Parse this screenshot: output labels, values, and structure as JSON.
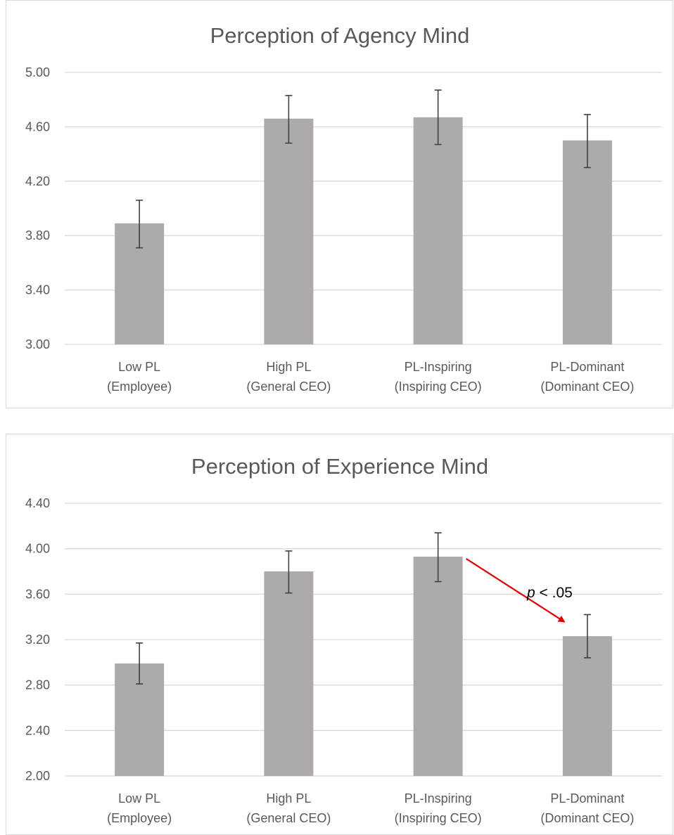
{
  "chart_data": [
    {
      "type": "bar",
      "title": "Perception of Agency Mind",
      "xlabel": "",
      "ylabel": "",
      "categories": [
        [
          "Low PL",
          "(Employee)"
        ],
        [
          "High PL",
          "(General CEO)"
        ],
        [
          "PL-Inspiring",
          "(Inspiring CEO)"
        ],
        [
          "PL-Dominant",
          "(Dominant CEO)"
        ]
      ],
      "values": [
        3.89,
        4.66,
        4.67,
        4.5
      ],
      "error_low": [
        3.71,
        4.48,
        4.47,
        4.3
      ],
      "error_high": [
        4.06,
        4.83,
        4.87,
        4.69
      ],
      "ylim": [
        3.0,
        5.0
      ],
      "yticks": [
        "3.00",
        "3.40",
        "3.80",
        "4.20",
        "4.60",
        "5.00"
      ],
      "grid": true,
      "legend": "none",
      "bar_color": "#aeaaaa"
    },
    {
      "type": "bar",
      "title": "Perception of Experience Mind",
      "xlabel": "",
      "ylabel": "",
      "categories": [
        [
          "Low PL",
          "(Employee)"
        ],
        [
          "High PL",
          "(General CEO)"
        ],
        [
          "PL-Inspiring",
          "(Inspiring CEO)"
        ],
        [
          "PL-Dominant",
          "(Dominant CEO)"
        ]
      ],
      "values": [
        2.99,
        3.8,
        3.93,
        3.23
      ],
      "error_low": [
        2.81,
        3.61,
        3.71,
        3.04
      ],
      "error_high": [
        3.17,
        3.98,
        4.14,
        3.42
      ],
      "ylim": [
        2.0,
        4.4
      ],
      "yticks": [
        "2.00",
        "2.40",
        "2.80",
        "3.20",
        "3.60",
        "4.00",
        "4.40"
      ],
      "grid": true,
      "legend": "none",
      "bar_color": "#aeaaaa",
      "annotation": {
        "italic": "p",
        "text": " < .05",
        "from_category": 2,
        "to_category": 3,
        "color": "#e00000"
      }
    }
  ]
}
